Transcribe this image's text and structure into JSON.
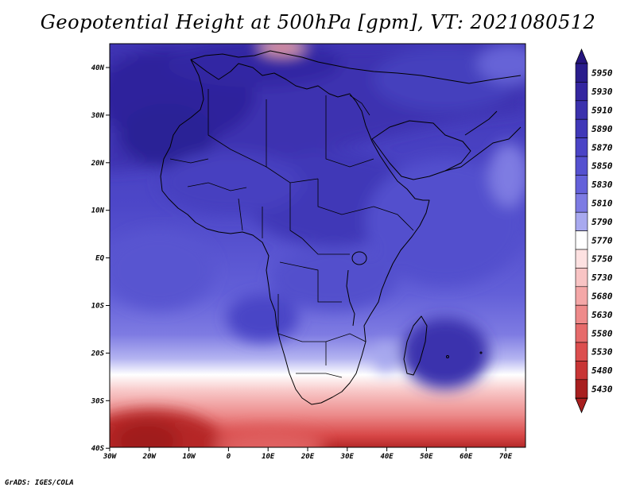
{
  "title": "Geopotential Height at 500hPa [gpm], VT: 2021080512",
  "credit": "GrADS: IGES/COLA",
  "map": {
    "lat_ticks": [
      "40N",
      "30N",
      "20N",
      "10N",
      "EQ",
      "10S",
      "20S",
      "30S",
      "40S"
    ],
    "lon_ticks": [
      "30W",
      "20W",
      "10W",
      "0",
      "10E",
      "20E",
      "30E",
      "40E",
      "50E",
      "60E",
      "70E"
    ]
  },
  "colorbar": {
    "levels": [
      {
        "label": "5950",
        "color": "#2a1d8c"
      },
      {
        "label": "5930",
        "color": "#3426a0"
      },
      {
        "label": "5910",
        "color": "#3b31ad"
      },
      {
        "label": "5890",
        "color": "#4038b8"
      },
      {
        "label": "5870",
        "color": "#4a44c6"
      },
      {
        "label": "5850",
        "color": "#5551d0"
      },
      {
        "label": "5830",
        "color": "#6461da"
      },
      {
        "label": "5810",
        "color": "#7d7be3"
      },
      {
        "label": "5790",
        "color": "#a8a9ef"
      },
      {
        "label": "5770",
        "color": "#ffffff"
      },
      {
        "label": "5750",
        "color": "#fde1e1"
      },
      {
        "label": "5730",
        "color": "#f8c4c4"
      },
      {
        "label": "5680",
        "color": "#f4a7a7"
      },
      {
        "label": "5630",
        "color": "#ee8a8a"
      },
      {
        "label": "5580",
        "color": "#e66b6b"
      },
      {
        "label": "5530",
        "color": "#dc4e4e"
      },
      {
        "label": "5480",
        "color": "#c83535"
      },
      {
        "label": "5430",
        "color": "#a81f1f"
      }
    ],
    "top_arrow_color": "#26157e",
    "bottom_arrow_color": "#a81f1f"
  }
}
